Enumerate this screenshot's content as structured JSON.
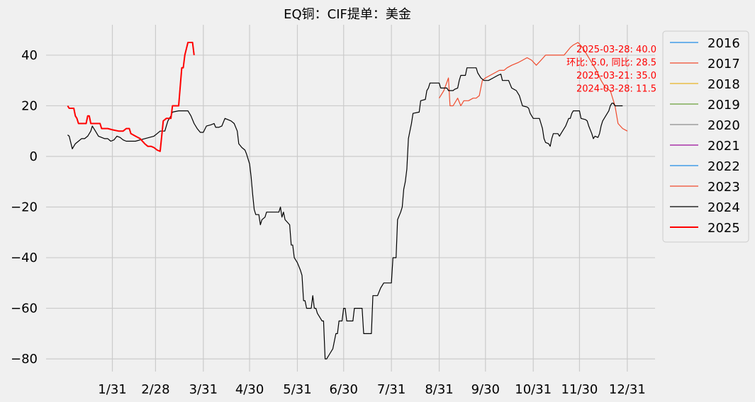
{
  "chart_data": {
    "type": "line",
    "title": "EQ铜：CIF提单：美金",
    "xlabel": "",
    "ylabel": "",
    "ylim": [
      -85,
      52
    ],
    "yticks": [
      -80,
      -60,
      -40,
      -20,
      0,
      20,
      40
    ],
    "xticks": [
      {
        "label": "1/31",
        "day": 31
      },
      {
        "label": "2/28",
        "day": 59
      },
      {
        "label": "3/31",
        "day": 90
      },
      {
        "label": "4/30",
        "day": 120
      },
      {
        "label": "5/31",
        "day": 151
      },
      {
        "label": "6/30",
        "day": 181
      },
      {
        "label": "7/31",
        "day": 212
      },
      {
        "label": "8/31",
        "day": 243
      },
      {
        "label": "9/30",
        "day": 273
      },
      {
        "label": "10/31",
        "day": 304
      },
      {
        "label": "11/30",
        "day": 334
      },
      {
        "label": "12/31",
        "day": 365
      }
    ],
    "xlim": [
      -12,
      383
    ],
    "grid": true,
    "legend_position": "outside-right",
    "annotations": [
      "2025-03-28: 40.0",
      "环比: 5.0, 同比: 28.5",
      "2025-03-21: 35.0",
      "2024-03-28: 11.5"
    ],
    "series": [
      {
        "name": "2016",
        "color": "#1f8be6",
        "width": 1.2,
        "points": []
      },
      {
        "name": "2017",
        "color": "#f04a2c",
        "width": 1.2,
        "points": []
      },
      {
        "name": "2018",
        "color": "#e8b325",
        "width": 1.2,
        "points": []
      },
      {
        "name": "2019",
        "color": "#6a9f3a",
        "width": 1.2,
        "points": []
      },
      {
        "name": "2020",
        "color": "#8c8c8c",
        "width": 1.2,
        "points": []
      },
      {
        "name": "2021",
        "color": "#9b0f9b",
        "width": 1.2,
        "points": []
      },
      {
        "name": "2022",
        "color": "#1f8be6",
        "width": 1.2,
        "points": []
      },
      {
        "name": "2023",
        "color": "#f04a2c",
        "width": 1.2,
        "points": [
          [
            243,
            23
          ],
          [
            246,
            26
          ],
          [
            249,
            31
          ],
          [
            250,
            20
          ],
          [
            252,
            20
          ],
          [
            255,
            23
          ],
          [
            257,
            20
          ],
          [
            259,
            22
          ],
          [
            262,
            22
          ],
          [
            265,
            23
          ],
          [
            267,
            23
          ],
          [
            269,
            24
          ],
          [
            271,
            30
          ],
          [
            273,
            31
          ],
          [
            276,
            32
          ],
          [
            279,
            33
          ],
          [
            282,
            34
          ],
          [
            285,
            34
          ],
          [
            287,
            35
          ],
          [
            290,
            36
          ],
          [
            294,
            37
          ],
          [
            297,
            38
          ],
          [
            300,
            39
          ],
          [
            303,
            38
          ],
          [
            306,
            36
          ],
          [
            309,
            38
          ],
          [
            312,
            40
          ],
          [
            316,
            40
          ],
          [
            320,
            40
          ],
          [
            324,
            40
          ],
          [
            328,
            43
          ],
          [
            330,
            44
          ],
          [
            333,
            45
          ],
          [
            336,
            43
          ],
          [
            339,
            40
          ],
          [
            342,
            37
          ],
          [
            345,
            34
          ],
          [
            348,
            30
          ],
          [
            351,
            27
          ],
          [
            354,
            26
          ],
          [
            357,
            20
          ],
          [
            359,
            13
          ],
          [
            362,
            11
          ],
          [
            365,
            10
          ]
        ]
      },
      {
        "name": "2024",
        "color": "#000000",
        "width": 1.2,
        "points": [
          [
            2,
            8.5
          ],
          [
            3,
            8
          ],
          [
            5,
            3
          ],
          [
            6,
            4
          ],
          [
            7,
            5
          ],
          [
            9,
            6
          ],
          [
            11,
            7
          ],
          [
            13,
            7
          ],
          [
            15,
            8
          ],
          [
            17,
            10
          ],
          [
            18,
            12
          ],
          [
            20,
            10
          ],
          [
            22,
            8
          ],
          [
            24,
            7.5
          ],
          [
            26,
            7
          ],
          [
            28,
            7
          ],
          [
            30,
            6
          ],
          [
            32,
            6.5
          ],
          [
            34,
            8
          ],
          [
            36,
            7.5
          ],
          [
            38,
            6.5
          ],
          [
            40,
            6
          ],
          [
            43,
            6
          ],
          [
            46,
            6
          ],
          [
            49,
            6.5
          ],
          [
            52,
            7
          ],
          [
            55,
            7.5
          ],
          [
            58,
            8
          ],
          [
            60,
            9
          ],
          [
            62,
            10
          ],
          [
            65,
            10
          ],
          [
            66,
            12
          ],
          [
            67,
            14
          ],
          [
            69,
            16
          ],
          [
            70,
            17.5
          ],
          [
            74,
            18
          ],
          [
            77,
            18
          ],
          [
            80,
            18
          ],
          [
            82,
            16
          ],
          [
            84,
            13
          ],
          [
            86,
            11
          ],
          [
            88,
            9.5
          ],
          [
            90,
            9.5
          ],
          [
            92,
            12
          ],
          [
            95,
            12.5
          ],
          [
            97,
            13
          ],
          [
            98,
            11.5
          ],
          [
            100,
            11.5
          ],
          [
            102,
            12
          ],
          [
            104,
            15
          ],
          [
            106,
            14.5
          ],
          [
            108,
            14
          ],
          [
            110,
            13
          ],
          [
            112,
            10
          ],
          [
            113,
            5
          ],
          [
            115,
            3.5
          ],
          [
            117,
            2.5
          ],
          [
            118,
            1
          ],
          [
            120,
            -3
          ],
          [
            121,
            -8
          ],
          [
            122,
            -15
          ],
          [
            123,
            -21
          ],
          [
            124,
            -23
          ],
          [
            126,
            -23
          ],
          [
            127,
            -27
          ],
          [
            128,
            -25
          ],
          [
            130,
            -24
          ],
          [
            131,
            -22
          ],
          [
            133,
            -22
          ],
          [
            135,
            -22
          ],
          [
            137,
            -22
          ],
          [
            139,
            -22
          ],
          [
            140,
            -20
          ],
          [
            141,
            -24
          ],
          [
            142,
            -22
          ],
          [
            143,
            -25
          ],
          [
            146,
            -27
          ],
          [
            147,
            -35
          ],
          [
            148,
            -35
          ],
          [
            149,
            -40
          ],
          [
            151,
            -42
          ],
          [
            153,
            -45
          ],
          [
            154,
            -47
          ],
          [
            155,
            -57
          ],
          [
            156,
            -57
          ],
          [
            157,
            -60
          ],
          [
            159,
            -60
          ],
          [
            160,
            -60
          ],
          [
            161,
            -55
          ],
          [
            162,
            -60
          ],
          [
            163,
            -60
          ],
          [
            164,
            -62
          ],
          [
            166,
            -64
          ],
          [
            167,
            -65
          ],
          [
            168,
            -65
          ],
          [
            169,
            -80
          ],
          [
            170,
            -80
          ],
          [
            172,
            -78
          ],
          [
            174,
            -76
          ],
          [
            176,
            -70
          ],
          [
            177,
            -70
          ],
          [
            178,
            -65
          ],
          [
            180,
            -65
          ],
          [
            181,
            -60
          ],
          [
            182,
            -60
          ],
          [
            183,
            -65
          ],
          [
            187,
            -65
          ],
          [
            188,
            -60
          ],
          [
            193,
            -60
          ],
          [
            194,
            -70
          ],
          [
            199,
            -70
          ],
          [
            200,
            -55
          ],
          [
            203,
            -55
          ],
          [
            205,
            -52
          ],
          [
            207,
            -50
          ],
          [
            209,
            -50
          ],
          [
            212,
            -50
          ],
          [
            213,
            -40
          ],
          [
            215,
            -40
          ],
          [
            216,
            -25
          ],
          [
            218,
            -22
          ],
          [
            219,
            -20
          ],
          [
            220,
            -13
          ],
          [
            221,
            -10
          ],
          [
            222,
            -5
          ],
          [
            223,
            7
          ],
          [
            224,
            10
          ],
          [
            225,
            13
          ],
          [
            226,
            17
          ],
          [
            230,
            17.5
          ],
          [
            231,
            22
          ],
          [
            234,
            22.5
          ],
          [
            235,
            26
          ],
          [
            236,
            27
          ],
          [
            237,
            29
          ],
          [
            240,
            29
          ],
          [
            243,
            29
          ],
          [
            244,
            27
          ],
          [
            248,
            27
          ],
          [
            249,
            26
          ],
          [
            252,
            26
          ],
          [
            253,
            26.5
          ],
          [
            255,
            27
          ],
          [
            256,
            30
          ],
          [
            257,
            32
          ],
          [
            260,
            32
          ],
          [
            261,
            35
          ],
          [
            264,
            35
          ],
          [
            267,
            35
          ],
          [
            268,
            33
          ],
          [
            270,
            31
          ],
          [
            272,
            30
          ],
          [
            275,
            30
          ],
          [
            278,
            31
          ],
          [
            281,
            32
          ],
          [
            283,
            32.5
          ],
          [
            284,
            30
          ],
          [
            288,
            30
          ],
          [
            290,
            27
          ],
          [
            293,
            26
          ],
          [
            295,
            24
          ],
          [
            296,
            22
          ],
          [
            297,
            20
          ],
          [
            300,
            19.5
          ],
          [
            301,
            19
          ],
          [
            302,
            17
          ],
          [
            304,
            15
          ],
          [
            308,
            15
          ],
          [
            309,
            13
          ],
          [
            310,
            11
          ],
          [
            311,
            7
          ],
          [
            312,
            5.5
          ],
          [
            314,
            5
          ],
          [
            315,
            4
          ],
          [
            316,
            7
          ],
          [
            317,
            9
          ],
          [
            320,
            9
          ],
          [
            321,
            8
          ],
          [
            322,
            9
          ],
          [
            325,
            12
          ],
          [
            327,
            15
          ],
          [
            328,
            15
          ],
          [
            329,
            17
          ],
          [
            330,
            18
          ],
          [
            334,
            18
          ],
          [
            335,
            15
          ],
          [
            338,
            14.5
          ],
          [
            339,
            14
          ],
          [
            340,
            12
          ],
          [
            342,
            9
          ],
          [
            343,
            7
          ],
          [
            344,
            8
          ],
          [
            346,
            7.5
          ],
          [
            347,
            9
          ],
          [
            348,
            12
          ],
          [
            349,
            14
          ],
          [
            351,
            16
          ],
          [
            353,
            18
          ],
          [
            354,
            20
          ],
          [
            355,
            21
          ],
          [
            356,
            21
          ],
          [
            357,
            20
          ],
          [
            360,
            20
          ],
          [
            362,
            20
          ]
        ]
      },
      {
        "name": "2025",
        "color": "#ff0000",
        "width": 2,
        "points": [
          [
            2,
            20
          ],
          [
            3,
            19
          ],
          [
            6,
            19
          ],
          [
            7,
            16
          ],
          [
            8,
            15
          ],
          [
            9,
            13
          ],
          [
            12,
            13
          ],
          [
            14,
            13
          ],
          [
            15,
            16
          ],
          [
            16,
            16
          ],
          [
            17,
            13
          ],
          [
            20,
            13
          ],
          [
            23,
            13
          ],
          [
            24,
            11
          ],
          [
            28,
            11
          ],
          [
            31,
            10.5
          ],
          [
            35,
            10
          ],
          [
            38,
            10
          ],
          [
            40,
            11
          ],
          [
            42,
            11
          ],
          [
            43,
            9
          ],
          [
            46,
            8
          ],
          [
            49,
            7
          ],
          [
            52,
            5
          ],
          [
            54,
            4
          ],
          [
            56,
            4
          ],
          [
            58,
            3.5
          ],
          [
            60,
            2.5
          ],
          [
            62,
            2
          ],
          [
            64,
            14
          ],
          [
            66,
            15
          ],
          [
            69,
            15
          ],
          [
            70,
            20
          ],
          [
            72,
            20
          ],
          [
            74,
            20
          ],
          [
            76,
            35
          ],
          [
            77,
            35
          ],
          [
            78,
            40
          ],
          [
            80,
            45
          ],
          [
            83,
            45
          ],
          [
            84,
            40
          ]
        ]
      }
    ]
  }
}
